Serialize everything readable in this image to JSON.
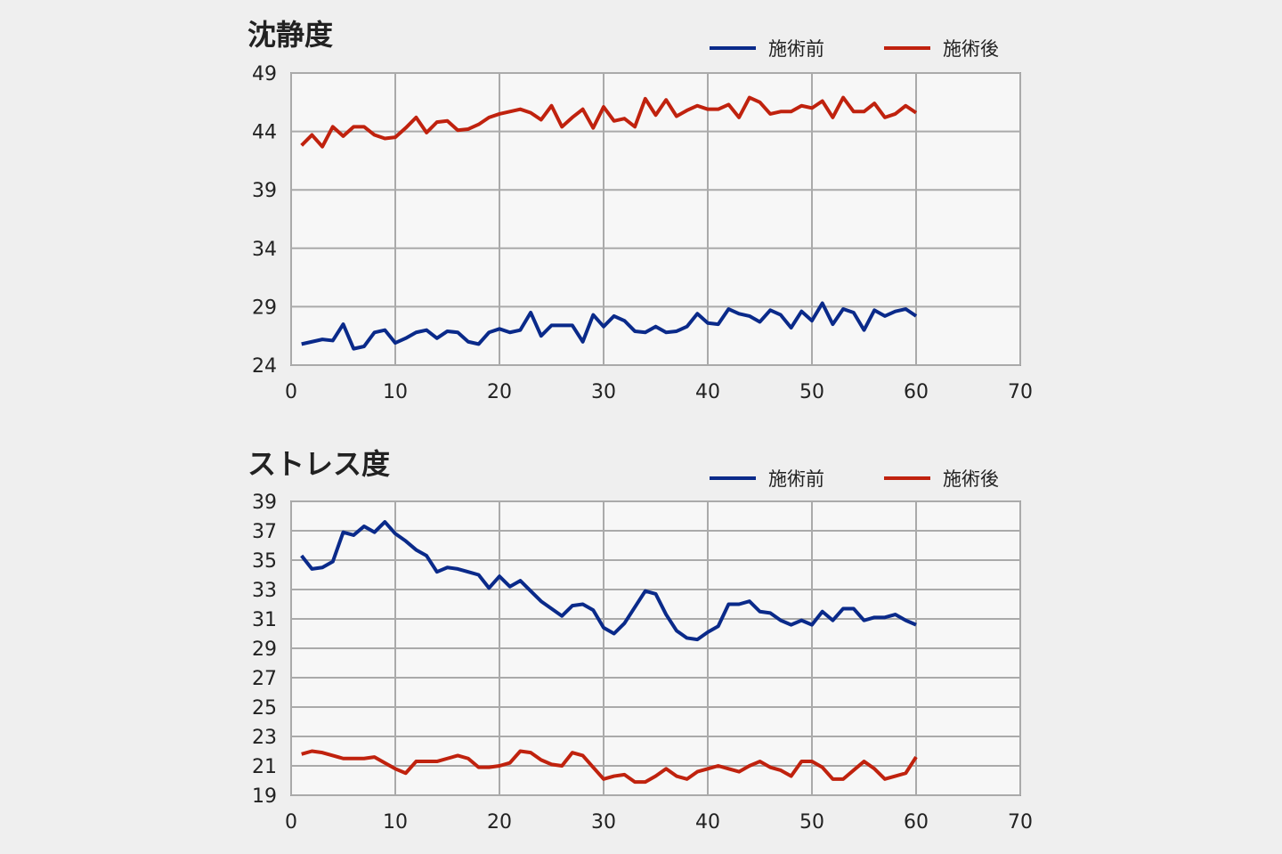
{
  "chart_data": [
    {
      "type": "line",
      "title": "沈静度",
      "xlim": [
        0,
        70
      ],
      "ylim": [
        24,
        49
      ],
      "xticks": [
        0,
        10,
        20,
        30,
        40,
        50,
        60,
        70
      ],
      "yticks": [
        24,
        29,
        34,
        39,
        44,
        49
      ],
      "grid": true,
      "legend_position": "top-right",
      "x": [
        1,
        2,
        3,
        4,
        5,
        6,
        7,
        8,
        9,
        10,
        11,
        12,
        13,
        14,
        15,
        16,
        17,
        18,
        19,
        20,
        21,
        22,
        23,
        24,
        25,
        26,
        27,
        28,
        29,
        30,
        31,
        32,
        33,
        34,
        35,
        36,
        37,
        38,
        39,
        40,
        41,
        42,
        43,
        44,
        45,
        46,
        47,
        48,
        49,
        50,
        51,
        52,
        53,
        54,
        55,
        56,
        57,
        58,
        59,
        60
      ],
      "series": [
        {
          "name": "施術前",
          "color": "#0a2a8a",
          "values": [
            25.8,
            26.0,
            26.2,
            26.1,
            27.5,
            25.4,
            25.6,
            26.8,
            27.0,
            25.9,
            26.3,
            26.8,
            27.0,
            26.3,
            26.9,
            26.8,
            26.0,
            25.8,
            26.8,
            27.1,
            26.8,
            27.0,
            28.5,
            26.5,
            27.4,
            27.4,
            27.4,
            26.0,
            28.3,
            27.3,
            28.2,
            27.8,
            26.9,
            26.8,
            27.3,
            26.8,
            26.9,
            27.3,
            28.4,
            27.6,
            27.5,
            28.8,
            28.4,
            28.2,
            27.7,
            28.7,
            28.3,
            27.2,
            28.6,
            27.8,
            29.3,
            27.5,
            28.8,
            28.5,
            27.0,
            28.7,
            28.2,
            28.6,
            28.8,
            28.2
          ]
        },
        {
          "name": "施術後",
          "color": "#c0220e",
          "values": [
            42.8,
            43.7,
            42.7,
            44.4,
            43.6,
            44.4,
            44.4,
            43.7,
            43.4,
            43.5,
            44.3,
            45.2,
            43.9,
            44.8,
            44.9,
            44.1,
            44.2,
            44.6,
            45.2,
            45.5,
            45.7,
            45.9,
            45.6,
            45.0,
            46.2,
            44.4,
            45.2,
            45.9,
            44.3,
            46.1,
            44.9,
            45.1,
            44.4,
            46.8,
            45.4,
            46.7,
            45.3,
            45.8,
            46.2,
            45.9,
            45.9,
            46.3,
            45.2,
            46.9,
            46.5,
            45.5,
            45.7,
            45.7,
            46.2,
            46.0,
            46.6,
            45.2,
            46.9,
            45.7,
            45.7,
            46.4,
            45.2,
            45.5,
            46.2,
            45.6
          ]
        }
      ]
    },
    {
      "type": "line",
      "title": "ストレス度",
      "xlim": [
        0,
        70
      ],
      "ylim": [
        19,
        39
      ],
      "xticks": [
        0,
        10,
        20,
        30,
        40,
        50,
        60,
        70
      ],
      "yticks": [
        19,
        21,
        23,
        25,
        27,
        29,
        31,
        33,
        35,
        37,
        39
      ],
      "grid": true,
      "legend_position": "top-right",
      "x": [
        1,
        2,
        3,
        4,
        5,
        6,
        7,
        8,
        9,
        10,
        11,
        12,
        13,
        14,
        15,
        16,
        17,
        18,
        19,
        20,
        21,
        22,
        23,
        24,
        25,
        26,
        27,
        28,
        29,
        30,
        31,
        32,
        33,
        34,
        35,
        36,
        37,
        38,
        39,
        40,
        41,
        42,
        43,
        44,
        45,
        46,
        47,
        48,
        49,
        50,
        51,
        52,
        53,
        54,
        55,
        56,
        57,
        58,
        59,
        60
      ],
      "series": [
        {
          "name": "施術前",
          "color": "#0a2a8a",
          "values": [
            35.3,
            34.4,
            34.5,
            34.9,
            36.9,
            36.7,
            37.3,
            36.9,
            37.6,
            36.8,
            36.3,
            35.7,
            35.3,
            34.2,
            34.5,
            34.4,
            34.2,
            34.0,
            33.1,
            33.9,
            33.2,
            33.6,
            32.9,
            32.2,
            31.7,
            31.2,
            31.9,
            32.0,
            31.6,
            30.4,
            30.0,
            30.7,
            31.8,
            32.9,
            32.7,
            31.3,
            30.2,
            29.7,
            29.6,
            30.1,
            30.5,
            32.0,
            32.0,
            32.2,
            31.5,
            31.4,
            30.9,
            30.6,
            30.9,
            30.6,
            31.5,
            30.9,
            31.7,
            31.7,
            30.9,
            31.1,
            31.1,
            31.3,
            30.9,
            30.6
          ]
        },
        {
          "name": "施術後",
          "color": "#c0220e",
          "values": [
            21.8,
            22.0,
            21.9,
            21.7,
            21.5,
            21.5,
            21.5,
            21.6,
            21.2,
            20.8,
            20.5,
            21.3,
            21.3,
            21.3,
            21.5,
            21.7,
            21.5,
            20.9,
            20.9,
            21.0,
            21.2,
            22.0,
            21.9,
            21.4,
            21.1,
            21.0,
            21.9,
            21.7,
            20.9,
            20.1,
            20.3,
            20.4,
            19.9,
            19.9,
            20.3,
            20.8,
            20.3,
            20.1,
            20.6,
            20.8,
            21.0,
            20.8,
            20.6,
            21.0,
            21.3,
            20.9,
            20.7,
            20.3,
            21.3,
            21.3,
            20.9,
            20.1,
            20.1,
            20.7,
            21.3,
            20.8,
            20.1,
            20.3,
            20.5,
            21.6
          ]
        }
      ]
    }
  ]
}
